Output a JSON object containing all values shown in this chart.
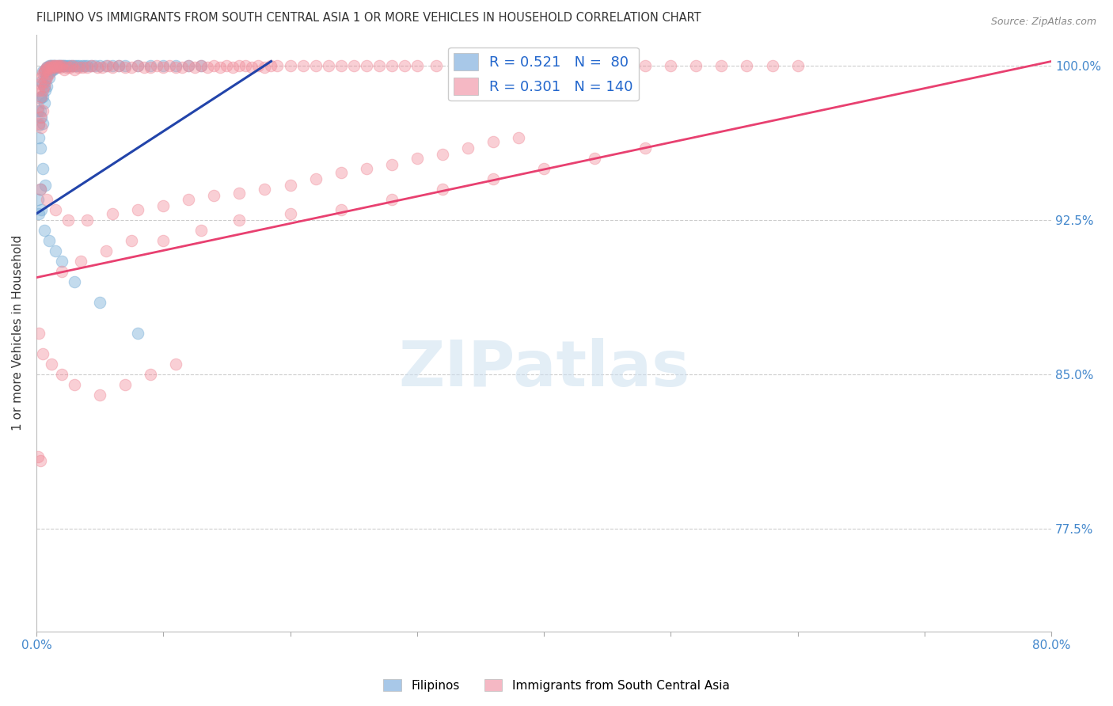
{
  "title": "FILIPINO VS IMMIGRANTS FROM SOUTH CENTRAL ASIA 1 OR MORE VEHICLES IN HOUSEHOLD CORRELATION CHART",
  "source": "Source: ZipAtlas.com",
  "ylabel": "1 or more Vehicles in Household",
  "y_tick_vals": [
    1.0,
    0.925,
    0.85,
    0.775
  ],
  "x_lim": [
    0.0,
    0.8
  ],
  "y_lim": [
    0.725,
    1.015
  ],
  "blue_line": {
    "x0": 0.0,
    "y0": 0.928,
    "x1": 0.185,
    "y1": 1.002
  },
  "pink_line": {
    "x0": 0.0,
    "y0": 0.897,
    "x1": 0.8,
    "y1": 1.002
  },
  "watermark": "ZIPatlas",
  "blue_color": "#7ab0d8",
  "pink_color": "#f08896",
  "blue_line_color": "#2244aa",
  "pink_line_color": "#e84070",
  "title_color": "#333333",
  "right_label_color": "#4488cc",
  "axis_label_color": "#4488cc",
  "grid_color": "#cccccc",
  "background_color": "#ffffff",
  "filipinos_x": [
    0.001,
    0.002,
    0.002,
    0.003,
    0.003,
    0.003,
    0.004,
    0.004,
    0.004,
    0.005,
    0.005,
    0.005,
    0.005,
    0.006,
    0.006,
    0.006,
    0.007,
    0.007,
    0.007,
    0.008,
    0.008,
    0.008,
    0.009,
    0.009,
    0.01,
    0.01,
    0.01,
    0.011,
    0.011,
    0.012,
    0.012,
    0.013,
    0.013,
    0.014,
    0.014,
    0.015,
    0.015,
    0.016,
    0.017,
    0.018,
    0.019,
    0.02,
    0.021,
    0.022,
    0.023,
    0.025,
    0.026,
    0.028,
    0.03,
    0.032,
    0.034,
    0.036,
    0.038,
    0.04,
    0.043,
    0.046,
    0.05,
    0.055,
    0.06,
    0.065,
    0.07,
    0.08,
    0.09,
    0.1,
    0.11,
    0.12,
    0.13,
    0.003,
    0.005,
    0.007,
    0.001,
    0.002,
    0.004,
    0.006,
    0.01,
    0.015,
    0.02,
    0.03,
    0.05,
    0.08
  ],
  "filipinos_y": [
    0.978,
    0.971,
    0.965,
    0.984,
    0.978,
    0.96,
    0.992,
    0.985,
    0.975,
    0.997,
    0.991,
    0.985,
    0.972,
    0.997,
    0.99,
    0.982,
    0.998,
    0.993,
    0.988,
    0.999,
    0.995,
    0.99,
    0.999,
    0.996,
    1.0,
    0.998,
    0.994,
    1.0,
    0.997,
    1.0,
    0.998,
    1.0,
    0.998,
    1.0,
    0.999,
    1.0,
    0.999,
    0.999,
    1.0,
    1.0,
    1.0,
    1.0,
    1.0,
    1.0,
    1.0,
    1.0,
    1.0,
    1.0,
    1.0,
    1.0,
    1.0,
    1.0,
    1.0,
    1.0,
    1.0,
    1.0,
    1.0,
    1.0,
    1.0,
    1.0,
    1.0,
    1.0,
    1.0,
    1.0,
    1.0,
    1.0,
    1.0,
    0.94,
    0.95,
    0.942,
    0.935,
    0.928,
    0.93,
    0.92,
    0.915,
    0.91,
    0.905,
    0.895,
    0.885,
    0.87
  ],
  "immigrants_x": [
    0.001,
    0.002,
    0.002,
    0.003,
    0.003,
    0.004,
    0.004,
    0.004,
    0.005,
    0.005,
    0.005,
    0.006,
    0.006,
    0.007,
    0.007,
    0.008,
    0.008,
    0.009,
    0.01,
    0.01,
    0.011,
    0.012,
    0.013,
    0.014,
    0.015,
    0.016,
    0.017,
    0.018,
    0.019,
    0.02,
    0.022,
    0.024,
    0.026,
    0.028,
    0.03,
    0.033,
    0.036,
    0.04,
    0.044,
    0.048,
    0.052,
    0.056,
    0.06,
    0.065,
    0.07,
    0.075,
    0.08,
    0.085,
    0.09,
    0.095,
    0.1,
    0.105,
    0.11,
    0.115,
    0.12,
    0.125,
    0.13,
    0.135,
    0.14,
    0.145,
    0.15,
    0.155,
    0.16,
    0.165,
    0.17,
    0.175,
    0.18,
    0.185,
    0.19,
    0.2,
    0.21,
    0.22,
    0.23,
    0.24,
    0.25,
    0.26,
    0.27,
    0.28,
    0.29,
    0.3,
    0.315,
    0.33,
    0.345,
    0.36,
    0.38,
    0.4,
    0.42,
    0.44,
    0.46,
    0.48,
    0.5,
    0.52,
    0.54,
    0.56,
    0.58,
    0.6,
    0.003,
    0.008,
    0.015,
    0.025,
    0.04,
    0.06,
    0.08,
    0.1,
    0.12,
    0.14,
    0.16,
    0.18,
    0.2,
    0.22,
    0.24,
    0.26,
    0.28,
    0.3,
    0.32,
    0.34,
    0.36,
    0.38,
    0.02,
    0.035,
    0.055,
    0.075,
    0.1,
    0.13,
    0.16,
    0.2,
    0.24,
    0.28,
    0.32,
    0.36,
    0.4,
    0.44,
    0.48,
    0.002,
    0.005,
    0.012,
    0.02,
    0.03,
    0.05,
    0.07,
    0.09,
    0.11,
    0.001,
    0.003
  ],
  "immigrants_y": [
    0.98,
    0.988,
    0.972,
    0.991,
    0.975,
    0.994,
    0.985,
    0.97,
    0.996,
    0.988,
    0.978,
    0.997,
    0.99,
    0.998,
    0.992,
    0.999,
    0.994,
    0.998,
    0.999,
    0.996,
    1.0,
    0.999,
    0.999,
    1.0,
    1.0,
    0.999,
    1.0,
    1.0,
    0.999,
    1.0,
    0.998,
    0.999,
    0.999,
    1.0,
    0.998,
    0.999,
    0.999,
    0.999,
    1.0,
    0.999,
    0.999,
    1.0,
    0.999,
    1.0,
    0.999,
    0.999,
    1.0,
    0.999,
    0.999,
    1.0,
    0.999,
    1.0,
    0.999,
    0.999,
    1.0,
    0.999,
    1.0,
    0.999,
    1.0,
    0.999,
    1.0,
    0.999,
    1.0,
    1.0,
    0.999,
    1.0,
    0.999,
    1.0,
    1.0,
    1.0,
    1.0,
    1.0,
    1.0,
    1.0,
    1.0,
    1.0,
    1.0,
    1.0,
    1.0,
    1.0,
    1.0,
    1.0,
    1.0,
    1.0,
    1.0,
    1.0,
    1.0,
    1.0,
    1.0,
    1.0,
    1.0,
    1.0,
    1.0,
    1.0,
    1.0,
    1.0,
    0.94,
    0.935,
    0.93,
    0.925,
    0.925,
    0.928,
    0.93,
    0.932,
    0.935,
    0.937,
    0.938,
    0.94,
    0.942,
    0.945,
    0.948,
    0.95,
    0.952,
    0.955,
    0.957,
    0.96,
    0.963,
    0.965,
    0.9,
    0.905,
    0.91,
    0.915,
    0.915,
    0.92,
    0.925,
    0.928,
    0.93,
    0.935,
    0.94,
    0.945,
    0.95,
    0.955,
    0.96,
    0.87,
    0.86,
    0.855,
    0.85,
    0.845,
    0.84,
    0.845,
    0.85,
    0.855,
    0.81,
    0.808
  ]
}
